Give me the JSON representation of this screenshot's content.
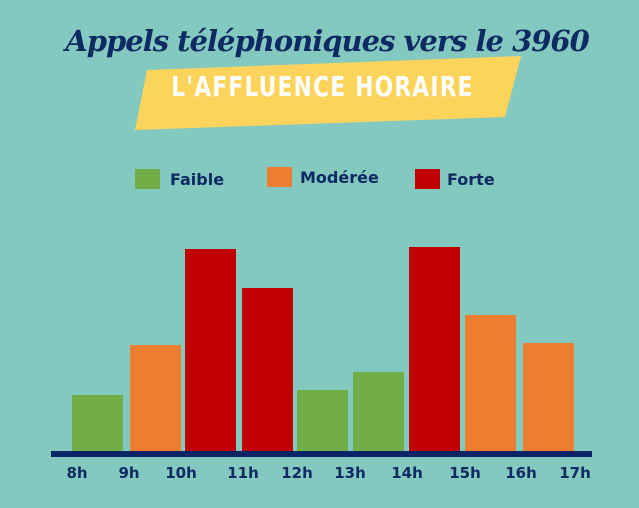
{
  "header": {
    "title": "Appels téléphoniques vers le 3960",
    "subtitle": "L'AFFLUENCE HORAIRE"
  },
  "colors": {
    "background": "#84c9bf",
    "banner": "#fcd45c",
    "navy": "#0d2a63",
    "axis": "#0b2468",
    "faible": "#71ae48",
    "moderee": "#ed7d31",
    "forte": "#c00000"
  },
  "legend": [
    {
      "label": "Faible",
      "color": "#71ae48"
    },
    {
      "label": "Modérée",
      "color": "#ed7d31"
    },
    {
      "label": "Forte",
      "color": "#c00000"
    }
  ],
  "axis": {
    "ticks": [
      "8h",
      "9h",
      "10h",
      "11h",
      "12h",
      "13h",
      "14h",
      "15h",
      "16h",
      "17h"
    ]
  },
  "chart_data": {
    "type": "bar",
    "title": "Appels téléphoniques vers le 3960",
    "subtitle": "L'AFFLUENCE HORAIRE",
    "xlabel": "",
    "ylabel": "",
    "y_axis_shown": false,
    "grid": false,
    "legend_position": "top",
    "categories": [
      "8h-9h",
      "9h-10h",
      "10h-11h",
      "11h-12h",
      "12h-13h",
      "13h-14h",
      "14h-15h",
      "15h-16h",
      "16h-17h"
    ],
    "tick_labels": [
      "8h",
      "9h",
      "10h",
      "11h",
      "12h",
      "13h",
      "14h",
      "15h",
      "16h",
      "17h"
    ],
    "values": [
      28,
      52,
      99,
      80,
      30,
      39,
      100,
      67,
      53
    ],
    "value_unit": "relative call volume (max = 100), estimated from bar heights",
    "levels": [
      "Faible",
      "Modérée",
      "Forte",
      "Forte",
      "Faible",
      "Faible",
      "Forte",
      "Modérée",
      "Modérée"
    ],
    "legend": [
      {
        "name": "Faible",
        "color": "#71ae48"
      },
      {
        "name": "Modérée",
        "color": "#ed7d31"
      },
      {
        "name": "Forte",
        "color": "#c00000"
      }
    ]
  }
}
